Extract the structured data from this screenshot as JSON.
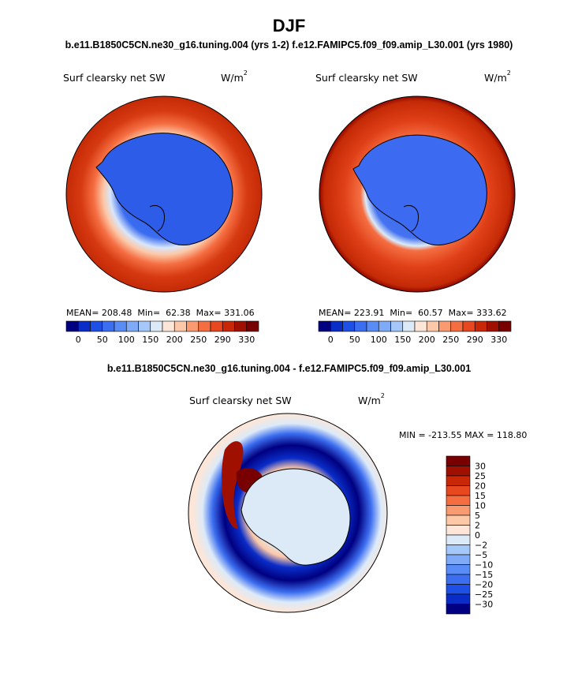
{
  "figure": {
    "title": "DJF",
    "subtitle_top": "b.e11.B1850C5CN.ne30_g16.tuning.004 (yrs 1-2)  f.e12.FAMIPC5.f09_f09.amip_L30.001 (yrs 1980)",
    "subtitle_diff": "b.e11.B1850C5CN.ne30_g16.tuning.004 - f.e12.FAMIPC5.f09_f09.amip_L30.001"
  },
  "colors": {
    "seq_scale": [
      "#000080",
      "#0a2dc8",
      "#1e50e6",
      "#3c6ef0",
      "#5a8cf5",
      "#7faaf8",
      "#a5c8fa",
      "#dceaf8",
      "#fde6d8",
      "#fcc8a8",
      "#fa9a70",
      "#f56e42",
      "#e84820",
      "#c82808",
      "#a01000",
      "#780000"
    ],
    "diff_scale": [
      "#780000",
      "#a01000",
      "#c82808",
      "#e84820",
      "#f56e42",
      "#fa9a70",
      "#fcc8a8",
      "#fde6d8",
      "#dceaf8",
      "#a5c8fa",
      "#7faaf8",
      "#5a8cf5",
      "#3c6ef0",
      "#1e50e6",
      "#0a2dc8",
      "#000080"
    ]
  },
  "chart_data": [
    {
      "type": "heatmap",
      "panel": "left",
      "title": "Surf clearsky net SW",
      "units": "W/m2",
      "units_base": "W/m",
      "units_exp": "2",
      "stats": {
        "mean_label": "MEAN=",
        "mean": "208.48",
        "min_label": "Min=",
        "min": "62.38",
        "max_label": "Max=",
        "max": "331.06"
      },
      "colorbar_ticks": [
        "0",
        "50",
        "100",
        "150",
        "200",
        "250",
        "290",
        "330"
      ]
    },
    {
      "type": "heatmap",
      "panel": "right",
      "title": "Surf clearsky net SW",
      "units": "W/m2",
      "units_base": "W/m",
      "units_exp": "2",
      "stats": {
        "mean_label": "MEAN=",
        "mean": "223.91",
        "min_label": "Min=",
        "min": "60.57",
        "max_label": "Max=",
        "max": "333.62"
      },
      "colorbar_ticks": [
        "0",
        "50",
        "100",
        "150",
        "200",
        "250",
        "290",
        "330"
      ]
    },
    {
      "type": "heatmap",
      "panel": "difference",
      "title": "Surf clearsky net SW",
      "units": "W/m2",
      "units_base": "W/m",
      "units_exp": "2",
      "minmax_label": "MIN = -213.55  MAX = 118.80",
      "min": -213.55,
      "max": 118.8,
      "colorbar_ticks": [
        "30",
        "25",
        "20",
        "15",
        "10",
        "5",
        "2",
        "0",
        "−2",
        "−5",
        "−10",
        "−15",
        "−20",
        "−25",
        "−30"
      ]
    }
  ]
}
